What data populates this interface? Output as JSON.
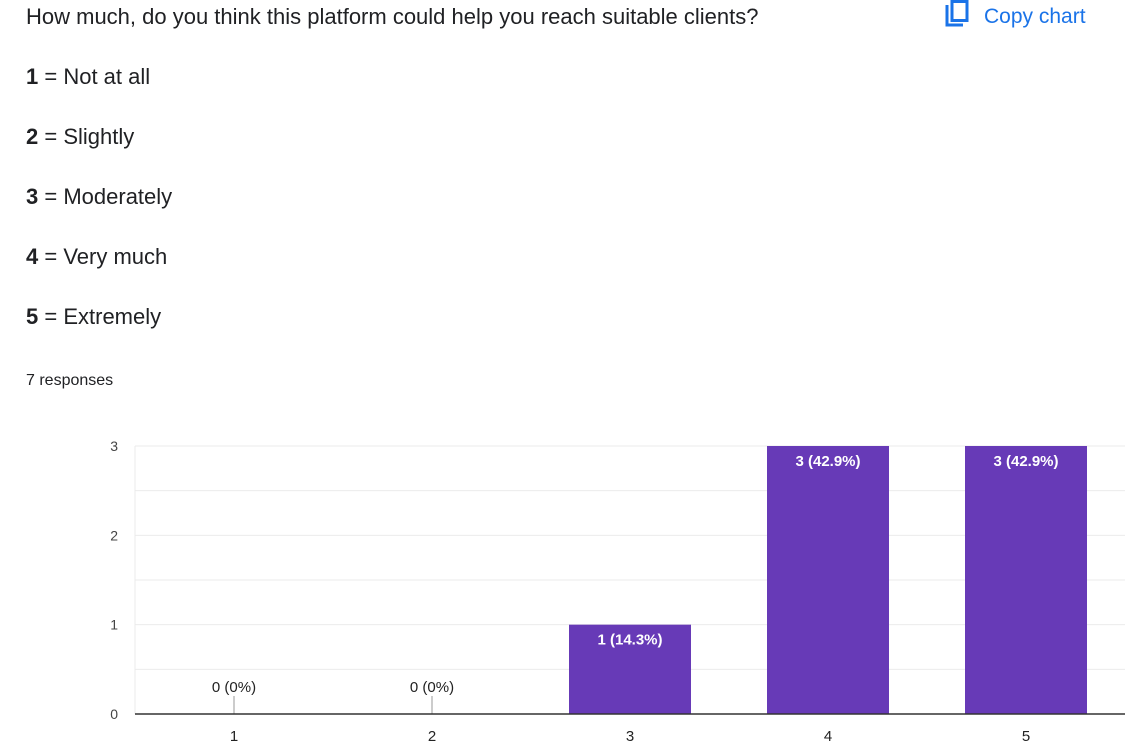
{
  "question": "How much, do you think this platform could help you reach suitable clients?",
  "copy_chart_label": "Copy chart",
  "scale": [
    {
      "num": "1",
      "text": "= Not at all"
    },
    {
      "num": "2",
      "text": "= Slightly"
    },
    {
      "num": "3",
      "text": "= Moderately"
    },
    {
      "num": "4",
      "text": "= Very much"
    },
    {
      "num": "5",
      "text": "= Extremely"
    }
  ],
  "responses": "7 responses",
  "colors": {
    "bar": "#673ab7",
    "accent": "#1a73e8"
  },
  "chart_data": {
    "type": "bar",
    "categories": [
      "1",
      "2",
      "3",
      "4",
      "5"
    ],
    "values": [
      0,
      0,
      1,
      3,
      3
    ],
    "data_labels": [
      "0 (0%)",
      "0 (0%)",
      "1 (14.3%)",
      "3 (42.9%)",
      "3 (42.9%)"
    ],
    "yticks": [
      "0",
      "1",
      "2",
      "3"
    ],
    "ylim": [
      0,
      3
    ],
    "grid": true,
    "xlabel": "",
    "ylabel": "",
    "title": ""
  }
}
